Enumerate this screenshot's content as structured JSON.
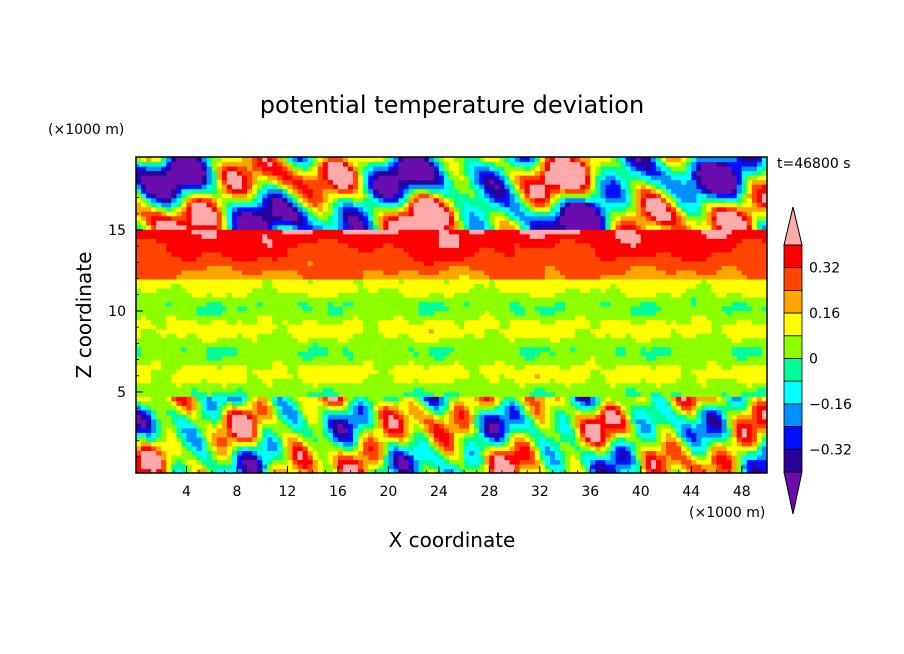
{
  "chart_data": {
    "type": "heatmap",
    "title": "potential temperature deviation",
    "xlabel": "X coordinate",
    "ylabel": "Z coordinate",
    "x_unit_label": "(×1000 m)",
    "z_unit_label": "(×1000 m)",
    "time_label": "t=46800 s",
    "xlim": [
      0,
      50
    ],
    "zlim": [
      0,
      19.5
    ],
    "x_ticks": [
      "4",
      "8",
      "12",
      "16",
      "20",
      "24",
      "28",
      "32",
      "36",
      "40",
      "44",
      "48"
    ],
    "z_ticks": [
      "5",
      "10",
      "15"
    ],
    "colorbar": {
      "labels": [
        "0.32",
        "0.16",
        "0",
        "−0.16",
        "−0.32"
      ],
      "levels": [
        -0.4,
        -0.32,
        -0.24,
        -0.16,
        -0.08,
        0,
        0.08,
        0.16,
        0.24,
        0.32,
        0.4
      ],
      "colors": [
        "#6a0dad",
        "#2a009a",
        "#0010ff",
        "#0090ff",
        "#00ffff",
        "#00ff9a",
        "#8cff00",
        "#ffff00",
        "#ffa500",
        "#ff4500",
        "#ff0000",
        "#ffaaaa"
      ]
    },
    "layers": [
      {
        "z_range": [
          0,
          4.6
        ],
        "description_free": true,
        "mean_dev": 0.0
      },
      {
        "z_range": [
          4.6,
          12
        ],
        "mean_dev": 0.1
      },
      {
        "z_range": [
          12,
          15
        ],
        "mean_dev": 0.3
      },
      {
        "z_range": [
          15,
          19.5
        ],
        "mean_dev": 0.0
      }
    ]
  }
}
